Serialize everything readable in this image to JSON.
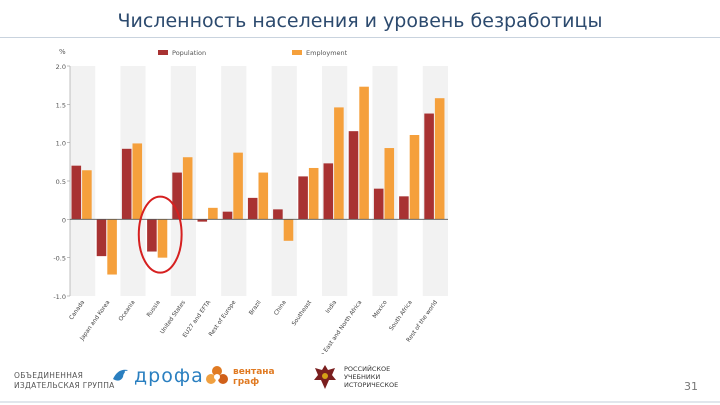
{
  "slide": {
    "title": "Численность населения и уровень безработицы",
    "page_number": "31"
  },
  "footer": {
    "group_line1": "ОБЪЕДИНЕННАЯ",
    "group_line2": "ИЗДАТЕЛЬСКАЯ ГРУППА",
    "drofa": "дрофа",
    "ventana_line1": "вентана",
    "ventana_line2": "граф",
    "rus_line1": "РОССИЙСКОЕ",
    "rus_line2": "УЧЕБНИКИ",
    "rus_line3": "ИСТОРИЧЕСКОЕ"
  },
  "chart_data": {
    "type": "bar",
    "ylabel": "%",
    "ylim": [
      -1.0,
      2.0
    ],
    "yticks": [
      -1.0,
      -0.5,
      0,
      0.5,
      1.0,
      1.5,
      2.0
    ],
    "ytick_labels": [
      "-1.0",
      "-0.5",
      "0",
      "0.5",
      "1.0",
      "1.5",
      "2.0"
    ],
    "legend_position": "top",
    "categories": [
      "Canada",
      "Japan and Korea",
      "Oceania",
      "Russia",
      "United States",
      "EU27 and EFTA",
      "Rest of Europe",
      "Brazil",
      "China",
      "Southeast",
      "India",
      "Middle East and North Africa",
      "Mexico",
      "South Africa",
      "Rest of the world"
    ],
    "series": [
      {
        "name": "Population",
        "color": "#a83232",
        "values": [
          0.7,
          -0.48,
          0.92,
          -0.42,
          0.61,
          -0.03,
          0.1,
          0.28,
          0.13,
          0.56,
          0.73,
          1.15,
          0.4,
          0.3,
          1.38
        ]
      },
      {
        "name": "Employment",
        "color": "#f5a03c",
        "values": [
          0.64,
          -0.72,
          0.99,
          -0.5,
          0.81,
          0.15,
          0.87,
          0.61,
          -0.28,
          0.67,
          1.46,
          1.73,
          0.93,
          1.1,
          1.58
        ]
      }
    ],
    "highlight": {
      "category_index": 3,
      "color": "#d62020"
    }
  }
}
